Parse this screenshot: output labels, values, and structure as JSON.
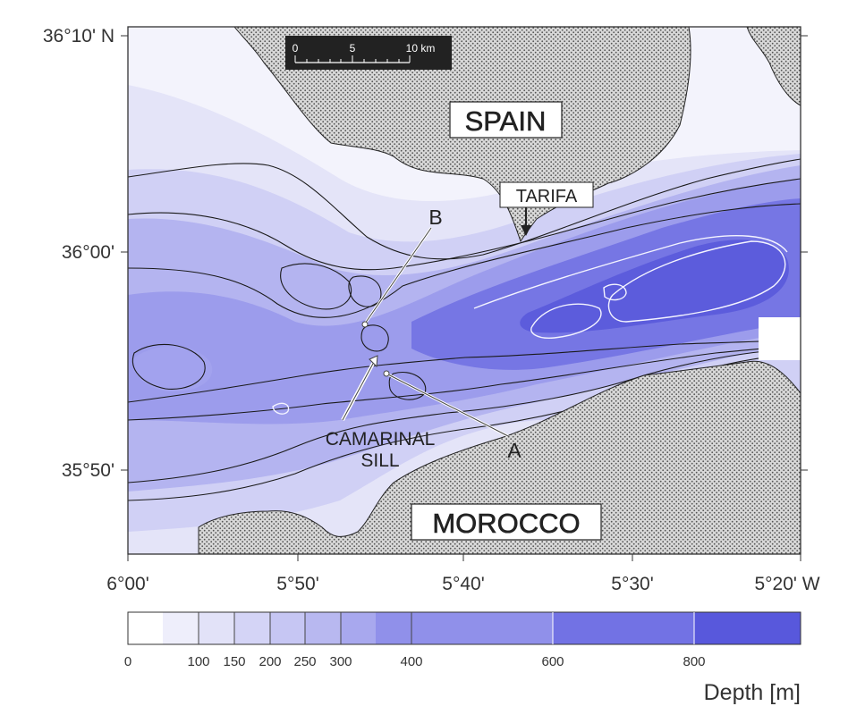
{
  "map": {
    "lat_labels": [
      "36°10' N",
      "36°00'",
      "35°50'"
    ],
    "lon_labels": [
      "6°00'",
      "5°50'",
      "5°40'",
      "5°30'",
      "5°20' W"
    ],
    "scale_bar": {
      "ticks": [
        "0",
        "5",
        "10 km"
      ]
    },
    "places": {
      "spain": "SPAIN",
      "tarifa": "TARIFA",
      "morocco": "MOROCCO",
      "sill_line1": "CAMARINAL",
      "sill_line2": "SILL",
      "point_a": "A",
      "point_b": "B"
    }
  },
  "legend": {
    "title": "Depth [m]",
    "ticks": [
      "0",
      "100",
      "150",
      "200",
      "250",
      "300",
      "400",
      "600",
      "800"
    ],
    "colors": [
      "#ffffff",
      "#eeeefb",
      "#e2e2f8",
      "#d4d4f6",
      "#c6c6f3",
      "#b8b8f0",
      "#a8a8ee",
      "#9090ea",
      "#7272e4",
      "#5858dc"
    ]
  },
  "colors": {
    "land": "#cfcfcf",
    "frame": "#333333",
    "contour_dark": "#1a1a1a",
    "contour_light": "#f2f2ff"
  }
}
